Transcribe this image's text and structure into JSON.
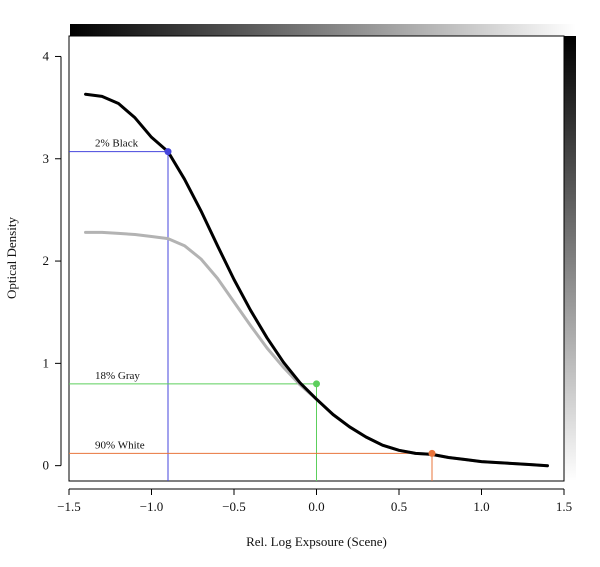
{
  "chart_data": {
    "type": "line",
    "title": "",
    "xlabel": "Rel. Log Expsoure (Scene)",
    "ylabel": "Optical Density",
    "xlim": [
      -1.5,
      1.5
    ],
    "ylim": [
      -0.15,
      4.2
    ],
    "x_ticks": [
      -1.5,
      -1.0,
      -0.5,
      0.0,
      0.5,
      1.0,
      1.5
    ],
    "x_tick_labels": [
      "−1.5",
      "−1.0",
      "−0.5",
      "0.0",
      "0.5",
      "1.0",
      "1.5"
    ],
    "y_ticks": [
      0,
      1,
      2,
      3,
      4
    ],
    "y_tick_labels": [
      "0",
      "1",
      "2",
      "3",
      "4"
    ],
    "grid": false,
    "series": [
      {
        "color": "#000000",
        "x": [
          -1.4,
          -1.3,
          -1.2,
          -1.1,
          -1.0,
          -0.9,
          -0.8,
          -0.7,
          -0.6,
          -0.5,
          -0.4,
          -0.3,
          -0.2,
          -0.1,
          0.0,
          0.1,
          0.2,
          0.3,
          0.4,
          0.5,
          0.6,
          0.7,
          0.8,
          0.9,
          1.0,
          1.1,
          1.2,
          1.3,
          1.4
        ],
        "y": [
          3.63,
          3.61,
          3.54,
          3.4,
          3.21,
          3.07,
          2.8,
          2.49,
          2.15,
          1.82,
          1.52,
          1.25,
          1.01,
          0.81,
          0.65,
          0.5,
          0.38,
          0.28,
          0.2,
          0.15,
          0.12,
          0.11,
          0.08,
          0.06,
          0.04,
          0.03,
          0.02,
          0.01,
          0.0
        ]
      },
      {
        "color": "#b3b3b3",
        "x": [
          -1.4,
          -1.3,
          -1.2,
          -1.1,
          -1.0,
          -0.9,
          -0.8,
          -0.7,
          -0.6,
          -0.5,
          -0.4,
          -0.3,
          -0.2,
          -0.1,
          0.0,
          0.1,
          0.2,
          0.3,
          0.4,
          0.5,
          0.6,
          0.7,
          0.8,
          0.9,
          1.0,
          1.1,
          1.2,
          1.3,
          1.4
        ],
        "y": [
          2.28,
          2.28,
          2.27,
          2.26,
          2.24,
          2.22,
          2.15,
          2.02,
          1.83,
          1.6,
          1.37,
          1.15,
          0.96,
          0.79,
          0.65,
          0.5,
          0.38,
          0.28,
          0.2,
          0.15,
          0.12,
          0.11,
          0.08,
          0.06,
          0.04,
          0.03,
          0.02,
          0.01,
          0.0
        ]
      }
    ],
    "annotations": [
      {
        "label": "2% Black",
        "x": -0.9,
        "y": 3.07,
        "color": "#4444dd"
      },
      {
        "label": "18% Gray",
        "x": 0.0,
        "y": 0.8,
        "color": "#5ccf5c"
      },
      {
        "label": "90% White",
        "x": 0.7,
        "y": 0.12,
        "color": "#e8743b"
      }
    ],
    "gradient_bars": {
      "top": "black-to-white",
      "right": "black-to-white"
    }
  }
}
